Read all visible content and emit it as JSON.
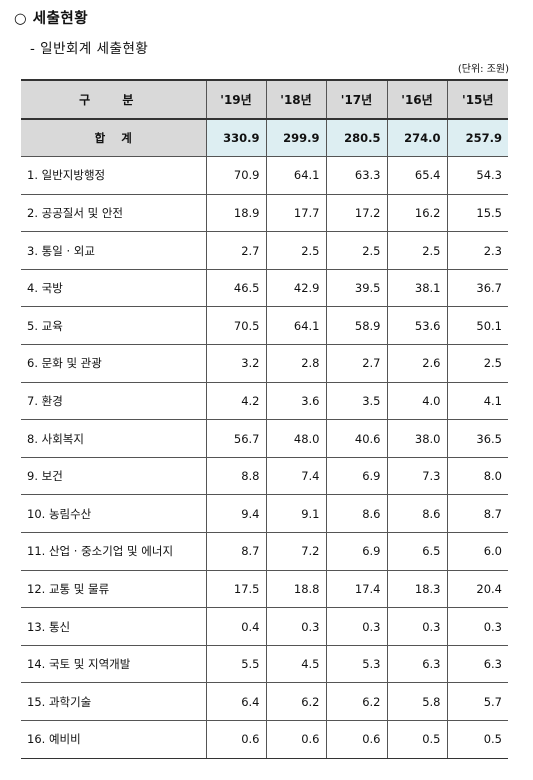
{
  "heading": {
    "title": "○ 세출현황",
    "subtitle": "- 일반회계 세출현황",
    "unit": "(단위: 조원)"
  },
  "table": {
    "header": {
      "category": "구 분",
      "years": [
        "'19년",
        "'18년",
        "'17년",
        "'16년",
        "'15년"
      ]
    },
    "total": {
      "label": "합 계",
      "values": [
        "330.9",
        "299.9",
        "280.5",
        "274.0",
        "257.9"
      ]
    },
    "rows": [
      {
        "label": "1. 일반지방행정",
        "values": [
          "70.9",
          "64.1",
          "63.3",
          "65.4",
          "54.3"
        ]
      },
      {
        "label": "2. 공공질서 및 안전",
        "values": [
          "18.9",
          "17.7",
          "17.2",
          "16.2",
          "15.5"
        ]
      },
      {
        "label": "3. 통일 · 외교",
        "values": [
          "2.7",
          "2.5",
          "2.5",
          "2.5",
          "2.3"
        ]
      },
      {
        "label": "4. 국방",
        "values": [
          "46.5",
          "42.9",
          "39.5",
          "38.1",
          "36.7"
        ]
      },
      {
        "label": "5. 교육",
        "values": [
          "70.5",
          "64.1",
          "58.9",
          "53.6",
          "50.1"
        ]
      },
      {
        "label": "6. 문화 및 관광",
        "values": [
          "3.2",
          "2.8",
          "2.7",
          "2.6",
          "2.5"
        ]
      },
      {
        "label": "7. 환경",
        "values": [
          "4.2",
          "3.6",
          "3.5",
          "4.0",
          "4.1"
        ]
      },
      {
        "label": "8. 사회복지",
        "values": [
          "56.7",
          "48.0",
          "40.6",
          "38.0",
          "36.5"
        ]
      },
      {
        "label": "9. 보건",
        "values": [
          "8.8",
          "7.4",
          "6.9",
          "7.3",
          "8.0"
        ]
      },
      {
        "label": "10. 농림수산",
        "values": [
          "9.4",
          "9.1",
          "8.6",
          "8.6",
          "8.7"
        ]
      },
      {
        "label": "11. 산업 · 중소기업 및 에너지",
        "values": [
          "8.7",
          "7.2",
          "6.9",
          "6.5",
          "6.0"
        ]
      },
      {
        "label": "12. 교통 및 물류",
        "values": [
          "17.5",
          "18.8",
          "17.4",
          "18.3",
          "20.4"
        ]
      },
      {
        "label": "13. 통신",
        "values": [
          "0.4",
          "0.3",
          "0.3",
          "0.3",
          "0.3"
        ]
      },
      {
        "label": "14. 국토 및 지역개발",
        "values": [
          "5.5",
          "4.5",
          "5.3",
          "6.3",
          "6.3"
        ]
      },
      {
        "label": "15. 과학기술",
        "values": [
          "6.4",
          "6.2",
          "6.2",
          "5.8",
          "5.7"
        ]
      },
      {
        "label": "16. 예비비",
        "values": [
          "0.6",
          "0.6",
          "0.6",
          "0.5",
          "0.5"
        ]
      }
    ]
  }
}
